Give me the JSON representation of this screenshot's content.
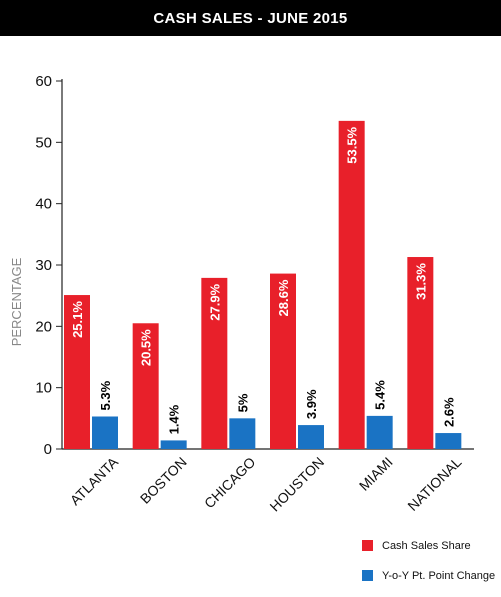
{
  "chart_data": {
    "type": "bar",
    "title": "CASH SALES - JUNE 2015",
    "ylabel": "PERCENTAGE",
    "xlabel": "",
    "ylim": [
      0,
      60
    ],
    "yticks": [
      0,
      10,
      20,
      30,
      40,
      50,
      60
    ],
    "grid": false,
    "legend_position": "bottom-right",
    "categories": [
      "ATLANTA",
      "BOSTON",
      "CHICAGO",
      "HOUSTON",
      "MIAMI",
      "NATIONAL"
    ],
    "series": [
      {
        "name": "Cash Sales Share",
        "color": "#e8202a",
        "values": [
          25.1,
          20.5,
          27.9,
          28.6,
          53.5,
          31.3
        ],
        "labels": [
          "25.1%",
          "20.5%",
          "27.9%",
          "28.6%",
          "53.5%",
          "31.3%"
        ]
      },
      {
        "name": "Y-o-Y Pt. Point Change",
        "color": "#1a73c4",
        "values": [
          5.3,
          1.4,
          5,
          3.9,
          5.4,
          2.6
        ],
        "labels": [
          "5.3%",
          "1.4%",
          "5%",
          "3.9%",
          "5.4%",
          "2.6%"
        ]
      }
    ]
  }
}
